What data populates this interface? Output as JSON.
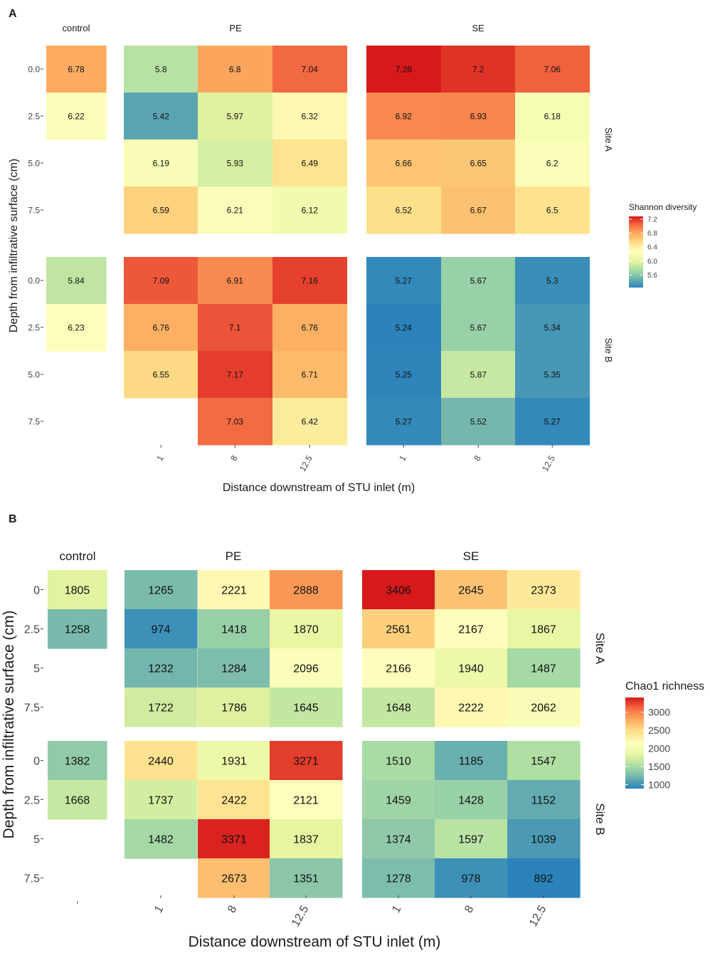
{
  "chart_data": [
    {
      "type": "heatmap",
      "panel_label": "A",
      "metric": "Shannon diversity",
      "xlabel": "Distance downstream of STU inlet (m)",
      "ylabel": "Depth from infiltrative surface (cm)",
      "legend": {
        "title": "Shannon diversity",
        "ticks": [
          "7.2",
          "6.8",
          "6.4",
          "6.0",
          "5.6"
        ],
        "range": [
          5.24,
          7.28
        ],
        "placement": "right"
      },
      "depth_ticks": [
        "0.0",
        "2.5",
        "5.0",
        "7.5"
      ],
      "facets": [
        {
          "name": "control",
          "x_ticks": []
        },
        {
          "name": "PE",
          "x_ticks": [
            "1",
            "8",
            "12.5"
          ]
        },
        {
          "name": "SE",
          "x_ticks": [
            "1",
            "8",
            "12.5"
          ]
        }
      ],
      "sites": [
        {
          "name": "Site A",
          "control": [
            [
              6.78
            ],
            [
              6.22
            ],
            [
              null
            ],
            [
              null
            ]
          ],
          "PE": [
            [
              5.8,
              6.8,
              7.04
            ],
            [
              5.42,
              5.97,
              6.32
            ],
            [
              6.19,
              5.93,
              6.49
            ],
            [
              6.59,
              6.21,
              6.12
            ]
          ],
          "SE": [
            [
              7.28,
              7.2,
              7.06
            ],
            [
              6.92,
              6.93,
              6.18
            ],
            [
              6.66,
              6.65,
              6.2
            ],
            [
              6.52,
              6.67,
              6.5
            ]
          ]
        },
        {
          "name": "Site B",
          "control": [
            [
              5.84
            ],
            [
              6.23
            ],
            [
              null
            ],
            [
              null
            ]
          ],
          "PE": [
            [
              7.09,
              6.91,
              7.16
            ],
            [
              6.76,
              7.1,
              6.76
            ],
            [
              6.55,
              7.17,
              6.71
            ],
            [
              null,
              7.03,
              6.42
            ]
          ],
          "SE": [
            [
              5.27,
              5.67,
              5.3
            ],
            [
              5.24,
              5.67,
              5.34
            ],
            [
              5.25,
              5.87,
              5.35
            ],
            [
              5.27,
              5.52,
              5.27
            ]
          ]
        }
      ]
    },
    {
      "type": "heatmap",
      "panel_label": "B",
      "metric": "Chao1 richness",
      "xlabel": "Distance downstream of STU inlet (m)",
      "ylabel": "Depth from infiltrative surface (cm)",
      "legend": {
        "title": "Chao1 richness",
        "ticks": [
          "3000",
          "2500",
          "2000",
          "1500",
          "1000"
        ],
        "range": [
          892,
          3406
        ],
        "placement": "right"
      },
      "depth_ticks": [
        "0",
        "2.5",
        "5",
        "7.5"
      ],
      "facets": [
        {
          "name": "control",
          "x_ticks": [
            ""
          ]
        },
        {
          "name": "PE",
          "x_ticks": [
            "1",
            "8",
            "12.5"
          ]
        },
        {
          "name": "SE",
          "x_ticks": [
            "1",
            "8",
            "12.5"
          ]
        }
      ],
      "sites": [
        {
          "name": "Site A",
          "control": [
            [
              1805
            ],
            [
              1258
            ],
            [
              null
            ],
            [
              null
            ]
          ],
          "PE": [
            [
              1265,
              2221,
              2888
            ],
            [
              974,
              1418,
              1870
            ],
            [
              1232,
              1284,
              2096
            ],
            [
              1722,
              1786,
              1645
            ]
          ],
          "SE": [
            [
              3406,
              2645,
              2373
            ],
            [
              2561,
              2167,
              1867
            ],
            [
              2166,
              1940,
              1487
            ],
            [
              1648,
              2222,
              2062
            ]
          ]
        },
        {
          "name": "Site B",
          "control": [
            [
              1382
            ],
            [
              1668
            ],
            [
              null
            ],
            [
              null
            ]
          ],
          "PE": [
            [
              2440,
              1931,
              3271
            ],
            [
              1737,
              2422,
              2121
            ],
            [
              1482,
              3371,
              1837
            ],
            [
              null,
              2673,
              1351
            ]
          ],
          "SE": [
            [
              1510,
              1185,
              1547
            ],
            [
              1459,
              1428,
              1152
            ],
            [
              1374,
              1597,
              1039
            ],
            [
              1278,
              978,
              892
            ]
          ]
        }
      ]
    }
  ],
  "colors": {
    "palette": [
      "#2b83ba",
      "#6fb3ae",
      "#abdda4",
      "#e6f5a0",
      "#ffffbf",
      "#fee08b",
      "#fdae61",
      "#f46d43",
      "#d7191c"
    ]
  }
}
